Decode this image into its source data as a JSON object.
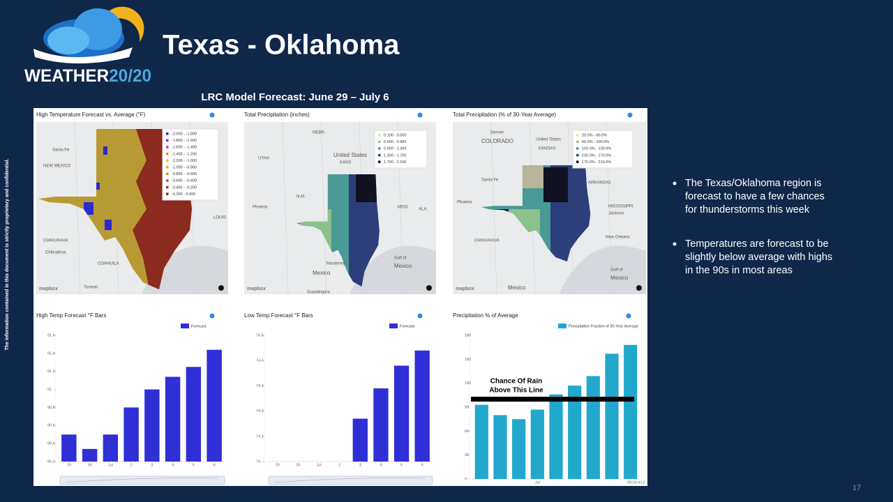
{
  "header": {
    "logo_word": "WEATHER",
    "logo_number": "20/20",
    "title": "Texas - Oklahoma"
  },
  "subtitle": "LRC Model Forecast:  June 29 – July 6",
  "side_note": "The information contained in this document is strictly proprietary and confidential.",
  "page_number": "17",
  "bullets": [
    [
      "The Texas/Oklahoma region is",
      "forecast to have a few chances",
      "for thunderstorms this week"
    ],
    [
      "Temperatures are forecast to be",
      "slightly below average with highs",
      "in the 90s in most areas"
    ]
  ],
  "maps": [
    {
      "title": "High Temperature Forecast vs. Average (°F)",
      "attribution": "mapbox",
      "legend": [
        {
          "label": "-2.000 - -1.800",
          "color": "#2b2bd0"
        },
        {
          "label": "-1.800 - -1.600",
          "color": "#7a2bd0"
        },
        {
          "label": "-1.600 - -1.400",
          "color": "#d02bc0"
        },
        {
          "label": "-1.400 - -1.200",
          "color": "#f07a2b"
        },
        {
          "label": "-1.200 - -1.000",
          "color": "#f0c02b"
        },
        {
          "label": "-1.000 - -0.800",
          "color": "#d8b030"
        },
        {
          "label": "-0.800 - -0.600",
          "color": "#b89a35"
        },
        {
          "label": "-0.600 - -0.400",
          "color": "#a06a2a"
        },
        {
          "label": "-0.400 - -0.200",
          "color": "#8a3a22"
        },
        {
          "label": "-0.200 - 0.000",
          "color": "#8b2a1e"
        }
      ],
      "labels": [
        "Santa Fe",
        "NEW MEXICO",
        "CHIHUAHUA",
        "Chihuahua",
        "COAHUILA",
        "LOUIS",
        "Torreón"
      ]
    },
    {
      "title": "Total Precipitation (inches)",
      "attribution": "mapbox",
      "legend": [
        {
          "label": "0.100 - 0.500",
          "color": "#e8e8a0"
        },
        {
          "label": "0.500 - 0.900",
          "color": "#8cc08c"
        },
        {
          "label": "0.900 - 1.300",
          "color": "#4a9a96"
        },
        {
          "label": "1.300 - 1.700",
          "color": "#2d3f7a"
        },
        {
          "label": "1.700 - 2.100",
          "color": "#111122"
        }
      ],
      "labels": [
        "NEBR.",
        "United States",
        "KANS",
        "UTAH",
        "N.M.",
        "Phoenix",
        "MISS.",
        "ALA.",
        "Mexico",
        "Monterrey",
        "Gulf of",
        "Mexico",
        "Guadalajara"
      ]
    },
    {
      "title": "Total Precipitation (% of 30-Year Average)",
      "attribution": "mapbox",
      "legend": [
        {
          "label": "20.0% - 60.0%",
          "color": "#e8e8a0"
        },
        {
          "label": "60.0% - 100.0%",
          "color": "#8cc08c"
        },
        {
          "label": "100.0% - 130.0%",
          "color": "#4a9a96"
        },
        {
          "label": "130.0% - 170.0%",
          "color": "#2d3f7a"
        },
        {
          "label": "170.0% - 210.0%",
          "color": "#111122"
        }
      ],
      "labels": [
        "Denver",
        "COLORADO",
        "United States",
        "KANSAS",
        "ARKANSAS",
        "Santa Fe",
        "Phoenix",
        "MISSISSIPPI",
        "Jackson",
        "New Orleans",
        "CHIHUAHUA",
        "Mexico",
        "Gulf of",
        "Mexico"
      ]
    }
  ],
  "chart_data": [
    {
      "type": "bar",
      "title": "High Temp Forecast °F Bars",
      "categories": [
        "29",
        "30",
        "Jul",
        "2",
        "3",
        "4",
        "5",
        "6"
      ],
      "series": [
        {
          "name": "Forecast",
          "color": "#2f2fd6",
          "values": [
            90.5,
            90.34,
            90.5,
            90.8,
            91.0,
            91.14,
            91.25,
            91.44
          ]
        }
      ],
      "ylim": [
        90.2,
        91.6
      ],
      "yticks": [
        90.2,
        90.4,
        90.6,
        90.8,
        91,
        91.2,
        91.4,
        91.6
      ]
    },
    {
      "type": "bar",
      "title": "Low Temp Forecast °F Bars",
      "categories": [
        "29",
        "30",
        "Jul",
        "2",
        "3",
        "4",
        "5",
        "6"
      ],
      "series": [
        {
          "name": "Forecast",
          "color": "#2f2fd6",
          "values": [
            null,
            null,
            null,
            null,
            74.17,
            74.29,
            74.38,
            74.44
          ]
        }
      ],
      "ylim": [
        74,
        74.5
      ],
      "yticks": [
        74,
        74.1,
        74.2,
        74.3,
        74.4,
        74.5
      ]
    },
    {
      "type": "bar",
      "title": "Precipitation % of Average",
      "categories": [
        null,
        null,
        null,
        "Jul",
        null,
        null,
        null,
        null,
        null
      ],
      "series": [
        {
          "name": "Precipitation Fraction of 30-Year Average",
          "color": "#22a8cc",
          "values": [
            93,
            80,
            75,
            87,
            106,
            117,
            129,
            157,
            168
          ]
        }
      ],
      "ylim": [
        0,
        180
      ],
      "yticks": [
        0,
        30,
        60,
        90,
        120,
        150,
        180
      ],
      "reference_line": 100,
      "annotation": [
        "Chance Of Rain",
        "Above This Line"
      ],
      "timestamp": "09:03:41 £"
    }
  ]
}
